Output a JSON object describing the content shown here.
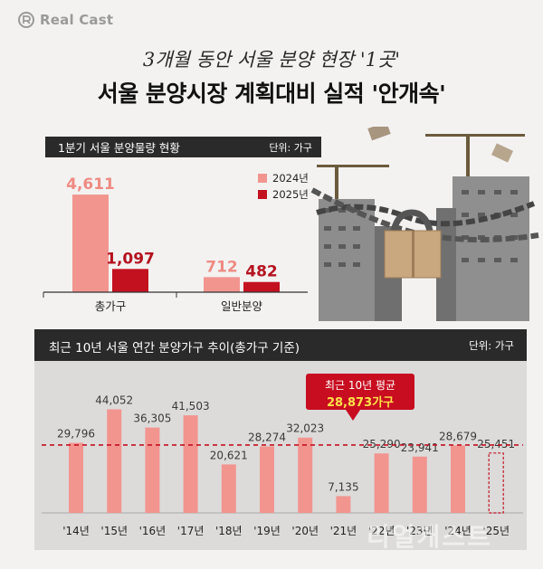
{
  "brand": {
    "name": "Real Cast",
    "icon": "realcast-logo-icon"
  },
  "header": {
    "subtitle": "3개월 동안 서울 분양 현장 '1곳'",
    "title": "서울 분양시장 계획대비 실적 '안개속'"
  },
  "watermark": "리얼캐스트",
  "colors": {
    "series_2024": "#f2958f",
    "series_2025": "#c3111f",
    "bar_recent": "#f2958f",
    "avg_line": "#c3111f",
    "dark_header": "#2a2a2a"
  },
  "chart_data": [
    {
      "type": "bar",
      "title": "1분기 서울 분양물량 현황",
      "unit_label": "단위: 가구",
      "categories": [
        "총가구",
        "일반분양"
      ],
      "series": [
        {
          "name": "2024년",
          "values": [
            4611,
            712
          ],
          "labels": [
            "4,611",
            "712"
          ]
        },
        {
          "name": "2025년",
          "values": [
            1097,
            482
          ],
          "labels": [
            "1,097",
            "482"
          ]
        }
      ],
      "ylim": [
        0,
        5000
      ],
      "legend": "top-right"
    },
    {
      "type": "bar",
      "title": "최근 10년 서울 연간 분양가구 추이(총가구 기준)",
      "unit_label": "단위: 가구",
      "categories": [
        "'14년",
        "'15년",
        "'16년",
        "'17년",
        "'18년",
        "'19년",
        "'20년",
        "'21년",
        "'22년",
        "'23년",
        "'24년",
        "'25년"
      ],
      "values": [
        29796,
        44052,
        36305,
        41503,
        20621,
        28274,
        32023,
        7135,
        25290,
        23941,
        28679,
        25451
      ],
      "value_labels": [
        "29,796",
        "44,052",
        "36,305",
        "41,503",
        "20,621",
        "28,274",
        "32,023",
        "7,135",
        "25,290",
        "23,941",
        "28,679",
        "25,451"
      ],
      "planned_index": 11,
      "average": {
        "label": "최근 10년 평균",
        "value": 28873,
        "value_label": "28,873가구"
      },
      "ylim": [
        0,
        50000
      ]
    }
  ]
}
